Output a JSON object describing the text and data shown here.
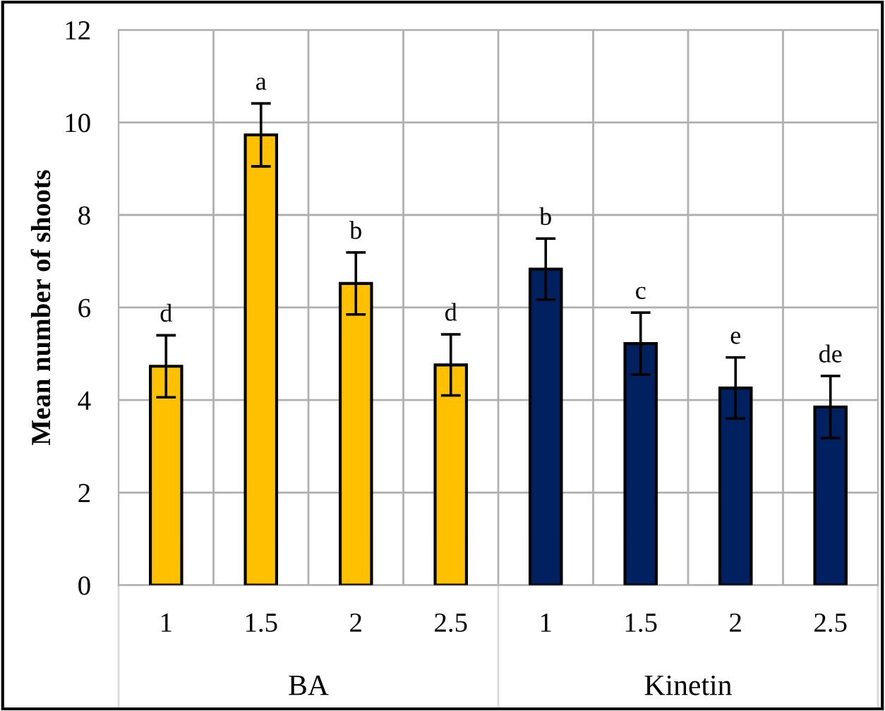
{
  "chart_data": {
    "type": "bar",
    "ylabel": "Mean number of shoots",
    "categories": [
      "1",
      "1.5",
      "2",
      "2.5",
      "1",
      "1.5",
      "2",
      "2.5"
    ],
    "series": [
      {
        "color": "#ffc000",
        "values": [
          4.73,
          9.73,
          6.52,
          4.76,
          null,
          null,
          null,
          null
        ],
        "errors": [
          0.67,
          0.68,
          0.67,
          0.66,
          null,
          null,
          null,
          null
        ],
        "value_labels": [
          "d",
          "a",
          "b",
          "d",
          null,
          null,
          null,
          null
        ]
      },
      {
        "color": "#002060",
        "values": [
          null,
          null,
          null,
          null,
          6.83,
          5.22,
          4.26,
          3.85
        ],
        "errors": [
          null,
          null,
          null,
          null,
          0.66,
          0.67,
          0.66,
          0.67
        ],
        "value_labels": [
          null,
          null,
          null,
          null,
          "b",
          "c",
          "e",
          "de"
        ]
      }
    ],
    "annotations": [
      "BA",
      "Kinetin"
    ],
    "ylim": [
      0,
      12
    ],
    "yticks": [
      0,
      2,
      4,
      6,
      8,
      10,
      12
    ],
    "grid": true,
    "legend": false
  }
}
